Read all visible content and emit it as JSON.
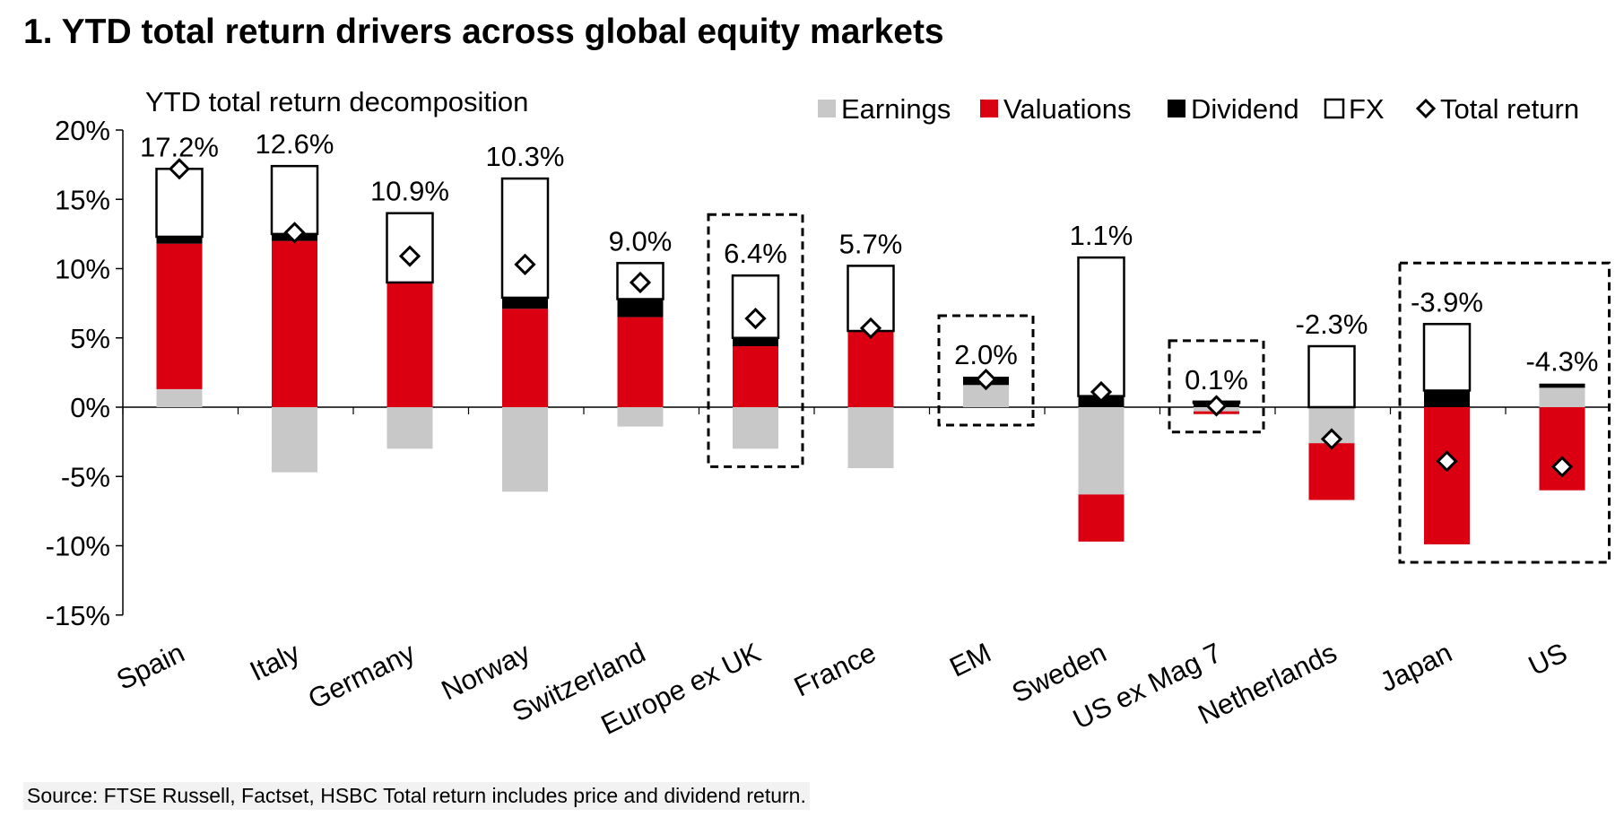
{
  "title": "1. YTD total return drivers across global equity markets",
  "source": "Source: FTSE Russell, Factset, HSBC Total return includes price and dividend return.",
  "chart_data": {
    "type": "bar",
    "stacked": true,
    "subtitle": "YTD total return decomposition",
    "categories": [
      "Spain",
      "Italy",
      "Germany",
      "Norway",
      "Switzerland",
      "Europe ex UK",
      "France",
      "EM",
      "Sweden",
      "US ex Mag 7",
      "Netherlands",
      "Japan",
      "US"
    ],
    "series": [
      {
        "name": "Earnings",
        "color": "#c8c8c8",
        "values": [
          1.3,
          -4.7,
          -3.0,
          -6.1,
          -1.4,
          -3.0,
          -4.4,
          1.6,
          -6.3,
          -0.3,
          -2.6,
          0.0,
          1.4
        ]
      },
      {
        "name": "Valuations",
        "color": "#db0011",
        "values": [
          10.5,
          12.0,
          9.0,
          7.1,
          6.5,
          4.4,
          5.5,
          0.0,
          -3.4,
          -0.2,
          -4.1,
          -9.9,
          -6.0
        ]
      },
      {
        "name": "Dividend",
        "color": "#000000",
        "values": [
          0.5,
          0.5,
          0.0,
          0.8,
          1.3,
          0.6,
          0.0,
          0.6,
          0.8,
          0.3,
          0.0,
          1.2,
          0.3
        ]
      },
      {
        "name": "FX",
        "color": "#ffffff",
        "values": [
          4.9,
          4.9,
          5.0,
          8.6,
          2.6,
          4.5,
          4.7,
          0.0,
          10.0,
          0.1,
          4.4,
          4.8,
          0.0
        ]
      }
    ],
    "total_return": {
      "name": "Total return",
      "values": [
        17.2,
        12.6,
        10.9,
        10.3,
        9.0,
        6.4,
        5.7,
        2.0,
        1.1,
        0.1,
        -2.3,
        -3.9,
        -4.3
      ],
      "labels": [
        "17.2%",
        "12.6%",
        "10.9%",
        "10.3%",
        "9.0%",
        "6.4%",
        "5.7%",
        "2.0%",
        "1.1%",
        "0.1%",
        "-2.3%",
        "-3.9%",
        "-4.3%"
      ]
    },
    "highlighted": [
      "Europe ex UK",
      "EM",
      "US ex Mag 7",
      "Japan",
      "US"
    ],
    "ylim": [
      -15,
      20
    ],
    "yticks": [
      20,
      15,
      10,
      5,
      0,
      -5,
      -10,
      -15
    ],
    "ytick_labels": [
      "20%",
      "15%",
      "10%",
      "5%",
      "0%",
      "-5%",
      "-10%",
      "-15%"
    ],
    "legend_position": "top-right",
    "grid": false
  }
}
